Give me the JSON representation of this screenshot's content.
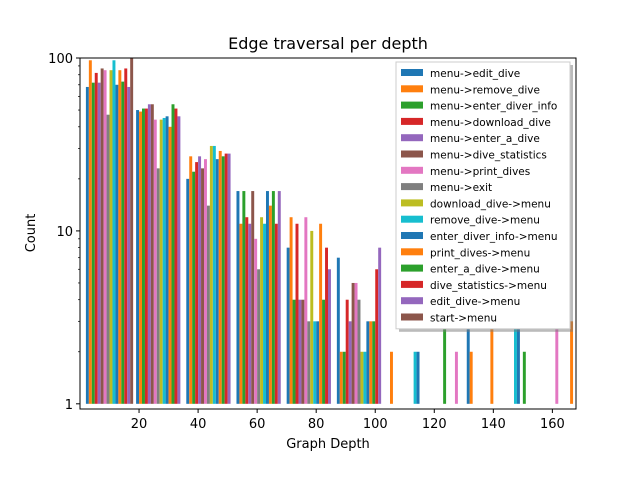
{
  "chart_data": {
    "type": "bar",
    "title": "Edge traversal per depth",
    "xlabel": "Graph Depth",
    "ylabel": "Count",
    "yscale": "log",
    "ylim": [
      1,
      100
    ],
    "xlim": [
      0,
      168
    ],
    "xticks": [
      20,
      40,
      60,
      80,
      100,
      120,
      140,
      160
    ],
    "yticks": [
      {
        "value": 1,
        "label": "1"
      },
      {
        "value": 10,
        "label": "10"
      },
      {
        "value": 100,
        "label": "100"
      }
    ],
    "legend_position": "top-right",
    "bin_starts": [
      2,
      19,
      36,
      53,
      70,
      87,
      104,
      121,
      138,
      155
    ],
    "bin_width": 16,
    "series": [
      {
        "name": "menu->edit_dive",
        "color": "#1f77b4",
        "values": [
          68,
          50,
          20,
          17,
          8,
          7,
          1,
          1,
          1,
          1
        ]
      },
      {
        "name": "menu->remove_dive",
        "color": "#ff7f0e",
        "values": [
          97,
          49,
          27,
          11,
          12,
          2,
          2,
          1,
          3,
          1
        ]
      },
      {
        "name": "menu->enter_diver_info",
        "color": "#2ca02c",
        "values": [
          72,
          51,
          22,
          17,
          4,
          2,
          1,
          3,
          1,
          1
        ]
      },
      {
        "name": "menu->download_dive",
        "color": "#d62728",
        "values": [
          82,
          51,
          25,
          12,
          11,
          4,
          1,
          1,
          1,
          1
        ]
      },
      {
        "name": "menu->enter_a_dive",
        "color": "#9467bd",
        "values": [
          72,
          54,
          27,
          11,
          4,
          3,
          1,
          1,
          1,
          1
        ]
      },
      {
        "name": "menu->dive_statistics",
        "color": "#8c564b",
        "values": [
          87,
          54,
          23,
          17,
          4,
          5,
          1,
          1,
          1,
          1
        ]
      },
      {
        "name": "menu->print_dives",
        "color": "#e377c2",
        "values": [
          85,
          44,
          26,
          9,
          12,
          5,
          1,
          2,
          1,
          3
        ]
      },
      {
        "name": "menu->exit",
        "color": "#7f7f7f",
        "values": [
          47,
          23,
          14,
          6,
          3,
          4,
          1,
          1,
          1,
          1
        ]
      },
      {
        "name": "download_dive->menu",
        "color": "#bcbd22",
        "values": [
          85,
          44,
          31,
          12,
          10,
          2,
          1,
          1,
          1,
          1
        ]
      },
      {
        "name": "remove_dive->menu",
        "color": "#17becf",
        "values": [
          97,
          45,
          31,
          11,
          3,
          2,
          2,
          1,
          3,
          1
        ]
      },
      {
        "name": "enter_diver_info->menu",
        "color": "#1f77b4",
        "values": [
          70,
          46,
          26,
          17,
          3,
          3,
          2,
          3,
          3,
          1
        ]
      },
      {
        "name": "print_dives->menu",
        "color": "#ff7f0e",
        "values": [
          85,
          40,
          29,
          14,
          11,
          3,
          1,
          2,
          1,
          3
        ]
      },
      {
        "name": "enter_a_dive->menu",
        "color": "#2ca02c",
        "values": [
          73,
          54,
          27,
          17,
          4,
          3,
          1,
          1,
          2,
          1
        ]
      },
      {
        "name": "dive_statistics->menu",
        "color": "#d62728",
        "values": [
          87,
          51,
          28,
          11,
          8,
          6,
          1,
          1,
          1,
          1
        ]
      },
      {
        "name": "edit_dive->menu",
        "color": "#9467bd",
        "values": [
          68,
          46,
          28,
          17,
          6,
          8,
          1,
          1,
          1,
          1
        ]
      },
      {
        "name": "start->menu",
        "color": "#8c564b",
        "values": [
          100,
          0,
          0,
          0,
          0,
          0,
          0,
          0,
          0,
          0
        ]
      }
    ]
  }
}
